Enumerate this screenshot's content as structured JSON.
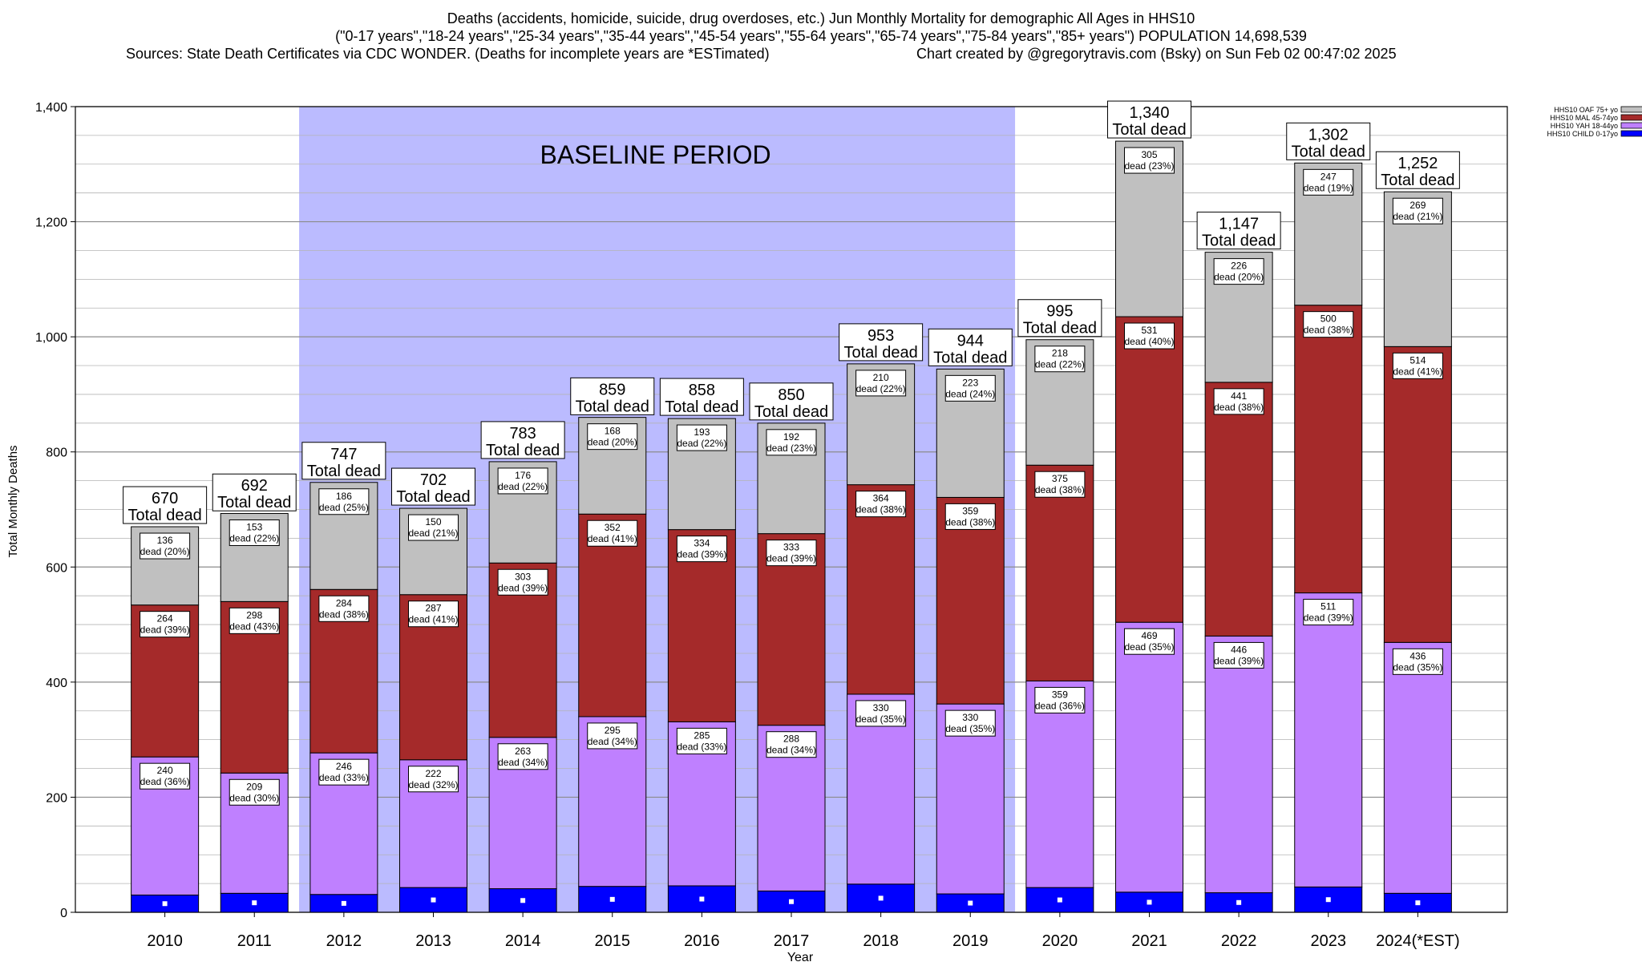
{
  "header": {
    "title_line1": "Deaths (accidents, homicide, suicide, drug overdoses, etc.) Jun Monthly Mortality for demographic All Ages in HHS10",
    "title_line2": "(\"0-17 years\",\"18-24 years\",\"25-34 years\",\"35-44 years\",\"45-54 years\",\"55-64 years\",\"65-74 years\",\"75-84 years\",\"85+ years\") POPULATION 14,698,539",
    "sources": "Sources: State Death Certificates via CDC WONDER. (Deaths for incomplete years are *ESTimated)",
    "credit": "Chart created by @gregorytravis.com (Bsky) on Sun Feb 02 00:47:02 2025"
  },
  "chart_data": {
    "type": "bar",
    "stacked": true,
    "xlabel": "Year",
    "ylabel": "Total Monthly Deaths",
    "ylim": [
      0,
      1400
    ],
    "yticks": [
      0,
      200,
      400,
      600,
      800,
      1000,
      1200,
      1400
    ],
    "ytick_labels": [
      "0",
      "200",
      "400",
      "600",
      "800",
      "1,000",
      "1,200",
      "1,400"
    ],
    "grid": true,
    "legend_position": "top-right",
    "categories": [
      "2010",
      "2011",
      "2012",
      "2013",
      "2014",
      "2015",
      "2016",
      "2017",
      "2018",
      "2019",
      "2020",
      "2021",
      "2022",
      "2023",
      "2024(*EST)"
    ],
    "baseline_period": {
      "label": "BASELINE PERIOD",
      "start": "2012",
      "end": "2019",
      "color": "#bbbbff"
    },
    "series": [
      {
        "name": "HHS10 CHILD 0-17yo",
        "color": "#0000ff",
        "values": [
          30,
          33,
          31,
          43,
          41,
          45,
          46,
          37,
          49,
          32,
          43,
          35,
          34,
          44,
          33
        ]
      },
      {
        "name": "HHS10 YAH 18-44yo",
        "color": "#bf80ff",
        "values": [
          240,
          209,
          246,
          222,
          263,
          295,
          285,
          288,
          330,
          330,
          359,
          469,
          446,
          511,
          436
        ],
        "labels": [
          "dead (36%)",
          "dead (30%)",
          "dead (33%)",
          "dead (32%)",
          "dead (34%)",
          "dead (34%)",
          "dead (33%)",
          "dead (34%)",
          "dead (35%)",
          "dead (35%)",
          "dead (36%)",
          "dead (35%)",
          "dead (39%)",
          "dead (39%)",
          "dead (35%)"
        ]
      },
      {
        "name": "HHS10 MAL 45-74yo",
        "color": "#a52a2a",
        "values": [
          264,
          298,
          284,
          287,
          303,
          352,
          334,
          333,
          364,
          359,
          375,
          531,
          441,
          500,
          514
        ],
        "labels": [
          "dead (39%)",
          "dead (43%)",
          "dead (38%)",
          "dead (41%)",
          "dead (39%)",
          "dead (41%)",
          "dead (39%)",
          "dead (39%)",
          "dead (38%)",
          "dead (38%)",
          "dead (38%)",
          "dead (40%)",
          "dead (38%)",
          "dead (38%)",
          "dead (41%)"
        ]
      },
      {
        "name": "HHS10 OAF 75+ yo",
        "color": "#c0c0c0",
        "values": [
          136,
          153,
          186,
          150,
          176,
          168,
          193,
          192,
          210,
          223,
          218,
          305,
          226,
          247,
          269
        ],
        "labels": [
          "dead (20%)",
          "dead (22%)",
          "dead (25%)",
          "dead (21%)",
          "dead (22%)",
          "dead (20%)",
          "dead (22%)",
          "dead (23%)",
          "dead (22%)",
          "dead (24%)",
          "dead (22%)",
          "dead (23%)",
          "dead (20%)",
          "dead (19%)",
          "dead (21%)"
        ]
      }
    ],
    "totals": [
      670,
      692,
      747,
      702,
      783,
      859,
      858,
      850,
      953,
      944,
      995,
      1340,
      1147,
      1302,
      1252
    ],
    "total_labels": [
      "670",
      "692",
      "747",
      "702",
      "783",
      "859",
      "858",
      "850",
      "953",
      "944",
      "995",
      "1,340",
      "1,147",
      "1,302",
      "1,252"
    ],
    "total_suffix": "Total dead",
    "legend_order": [
      "HHS10 OAF 75+ yo",
      "HHS10 MAL 45-74yo",
      "HHS10 YAH 18-44yo",
      "HHS10 CHILD 0-17yo"
    ]
  }
}
